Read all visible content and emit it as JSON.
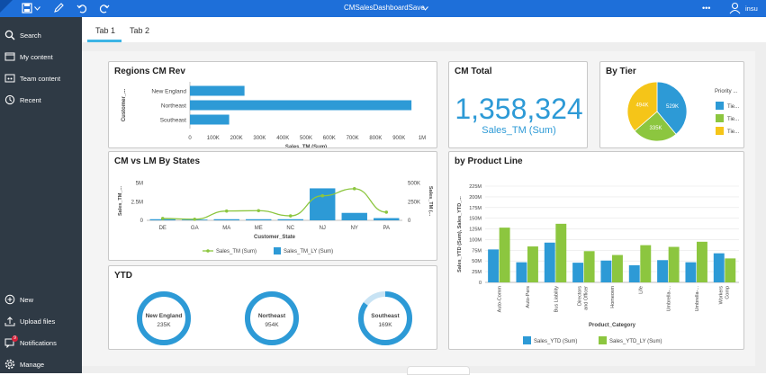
{
  "app": {
    "title": "CMSalesDashboardSave",
    "user": "insu",
    "more": "•••"
  },
  "colors": {
    "accent": "#1e6fd9",
    "bar": "#2d9ad6",
    "green": "#8cc63f",
    "yellow": "#f5c518",
    "sidebar": "#2f3a45"
  },
  "sidebar": {
    "top_items": [
      {
        "label": "Search",
        "icon": "search-icon"
      },
      {
        "label": "My content",
        "icon": "folder-icon"
      },
      {
        "label": "Team content",
        "icon": "team-folder-icon"
      },
      {
        "label": "Recent",
        "icon": "clock-icon"
      }
    ],
    "bottom_items": [
      {
        "label": "New",
        "icon": "plus-icon"
      },
      {
        "label": "Upload files",
        "icon": "upload-icon"
      },
      {
        "label": "Notifications",
        "icon": "bell-icon",
        "badge": "9"
      },
      {
        "label": "Manage",
        "icon": "gear-icon"
      }
    ]
  },
  "tabs": [
    {
      "label": "Tab 1",
      "active": true
    },
    {
      "label": "Tab 2",
      "active": false
    }
  ],
  "cards": {
    "regions": {
      "title": "Regions CM Rev"
    },
    "cm_total": {
      "title": "CM Total",
      "value": "1,358,324",
      "subtitle": "Sales_TM (Sum)"
    },
    "by_tier": {
      "title": "By Tier"
    },
    "cm_vs_lm": {
      "title": "CM vs LM By States"
    },
    "product_line": {
      "title": "by Product Line"
    },
    "ytd": {
      "title": "YTD"
    }
  },
  "chart_data": [
    {
      "id": "regions",
      "type": "bar",
      "orientation": "horizontal",
      "categories": [
        "New England",
        "Northeast",
        "Southeast"
      ],
      "values": [
        235,
        954,
        169
      ],
      "units": "K",
      "xlabel": "Sales_TM (Sum)",
      "ylabel": "Customer_...",
      "xticks": [
        "0",
        "100K",
        "200K",
        "300K",
        "400K",
        "500K",
        "600K",
        "700K",
        "800K",
        "900K",
        "1M"
      ],
      "xlim": [
        0,
        1000
      ]
    },
    {
      "id": "by_tier",
      "type": "pie",
      "legend_title": "Priority ...",
      "slices": [
        {
          "name": "Tie...",
          "value": 529,
          "label": "529K"
        },
        {
          "name": "Tie...",
          "value": 335,
          "label": "335K"
        },
        {
          "name": "Tie...",
          "value": 494,
          "label": "494K"
        }
      ]
    },
    {
      "id": "cm_vs_lm",
      "type": "bar",
      "categories": [
        "DE",
        "GA",
        "MA",
        "ME",
        "NC",
        "NJ",
        "NY",
        "PA"
      ],
      "series": [
        {
          "name": "Sales_TM (Sum)",
          "type": "line",
          "values": [
            25,
            15,
            125,
            130,
            60,
            330,
            425,
            110
          ]
        },
        {
          "name": "Sales_TM_LY (Sum)",
          "type": "bar",
          "values": [
            0.15,
            0.1,
            0.15,
            0.15,
            0.15,
            4.3,
            1.0,
            0.3
          ]
        }
      ],
      "xlabel": "Customer_State",
      "ylabel_left": "Sales_TM_...",
      "ylabel_right": "Sales_TM (...",
      "yticks_left": [
        "0",
        "2.5M",
        "5M"
      ],
      "yticks_right": [
        "0",
        "250K",
        "500K"
      ],
      "ylim_left": [
        0,
        5.2
      ],
      "ylim_right": [
        0,
        520
      ]
    },
    {
      "id": "product_line",
      "type": "bar",
      "categories": [
        "Auto-Comm",
        "Auto-Pers",
        "Bus Liability",
        "Directors and Officer",
        "Homeown",
        "Life",
        "Umbrella-...",
        "Umbrella-...",
        "Workers Comp"
      ],
      "series": [
        {
          "name": "Sales_YTD (Sum)",
          "values": [
            77,
            47,
            93,
            46,
            51,
            40,
            52,
            47,
            68
          ]
        },
        {
          "name": "Sales_YTD_LY (Sum)",
          "values": [
            128,
            84,
            137,
            73,
            64,
            87,
            83,
            95,
            56
          ]
        }
      ],
      "xlabel": "Product_Category",
      "ylabel": "Sales_YTD (Sum), Sales_YTD_...",
      "yticks": [
        "0",
        "25M",
        "50M",
        "75M",
        "100M",
        "125M",
        "150M",
        "175M",
        "200M",
        "225M"
      ],
      "ylim": [
        0,
        225
      ]
    },
    {
      "id": "ytd",
      "type": "pie",
      "variant": "donut-gauges",
      "items": [
        {
          "name": "New England",
          "value_label": "235K",
          "fraction": 1.0
        },
        {
          "name": "Northeast",
          "value_label": "954K",
          "fraction": 1.0
        },
        {
          "name": "Southeast",
          "value_label": "169K",
          "fraction": 0.85
        }
      ]
    }
  ]
}
